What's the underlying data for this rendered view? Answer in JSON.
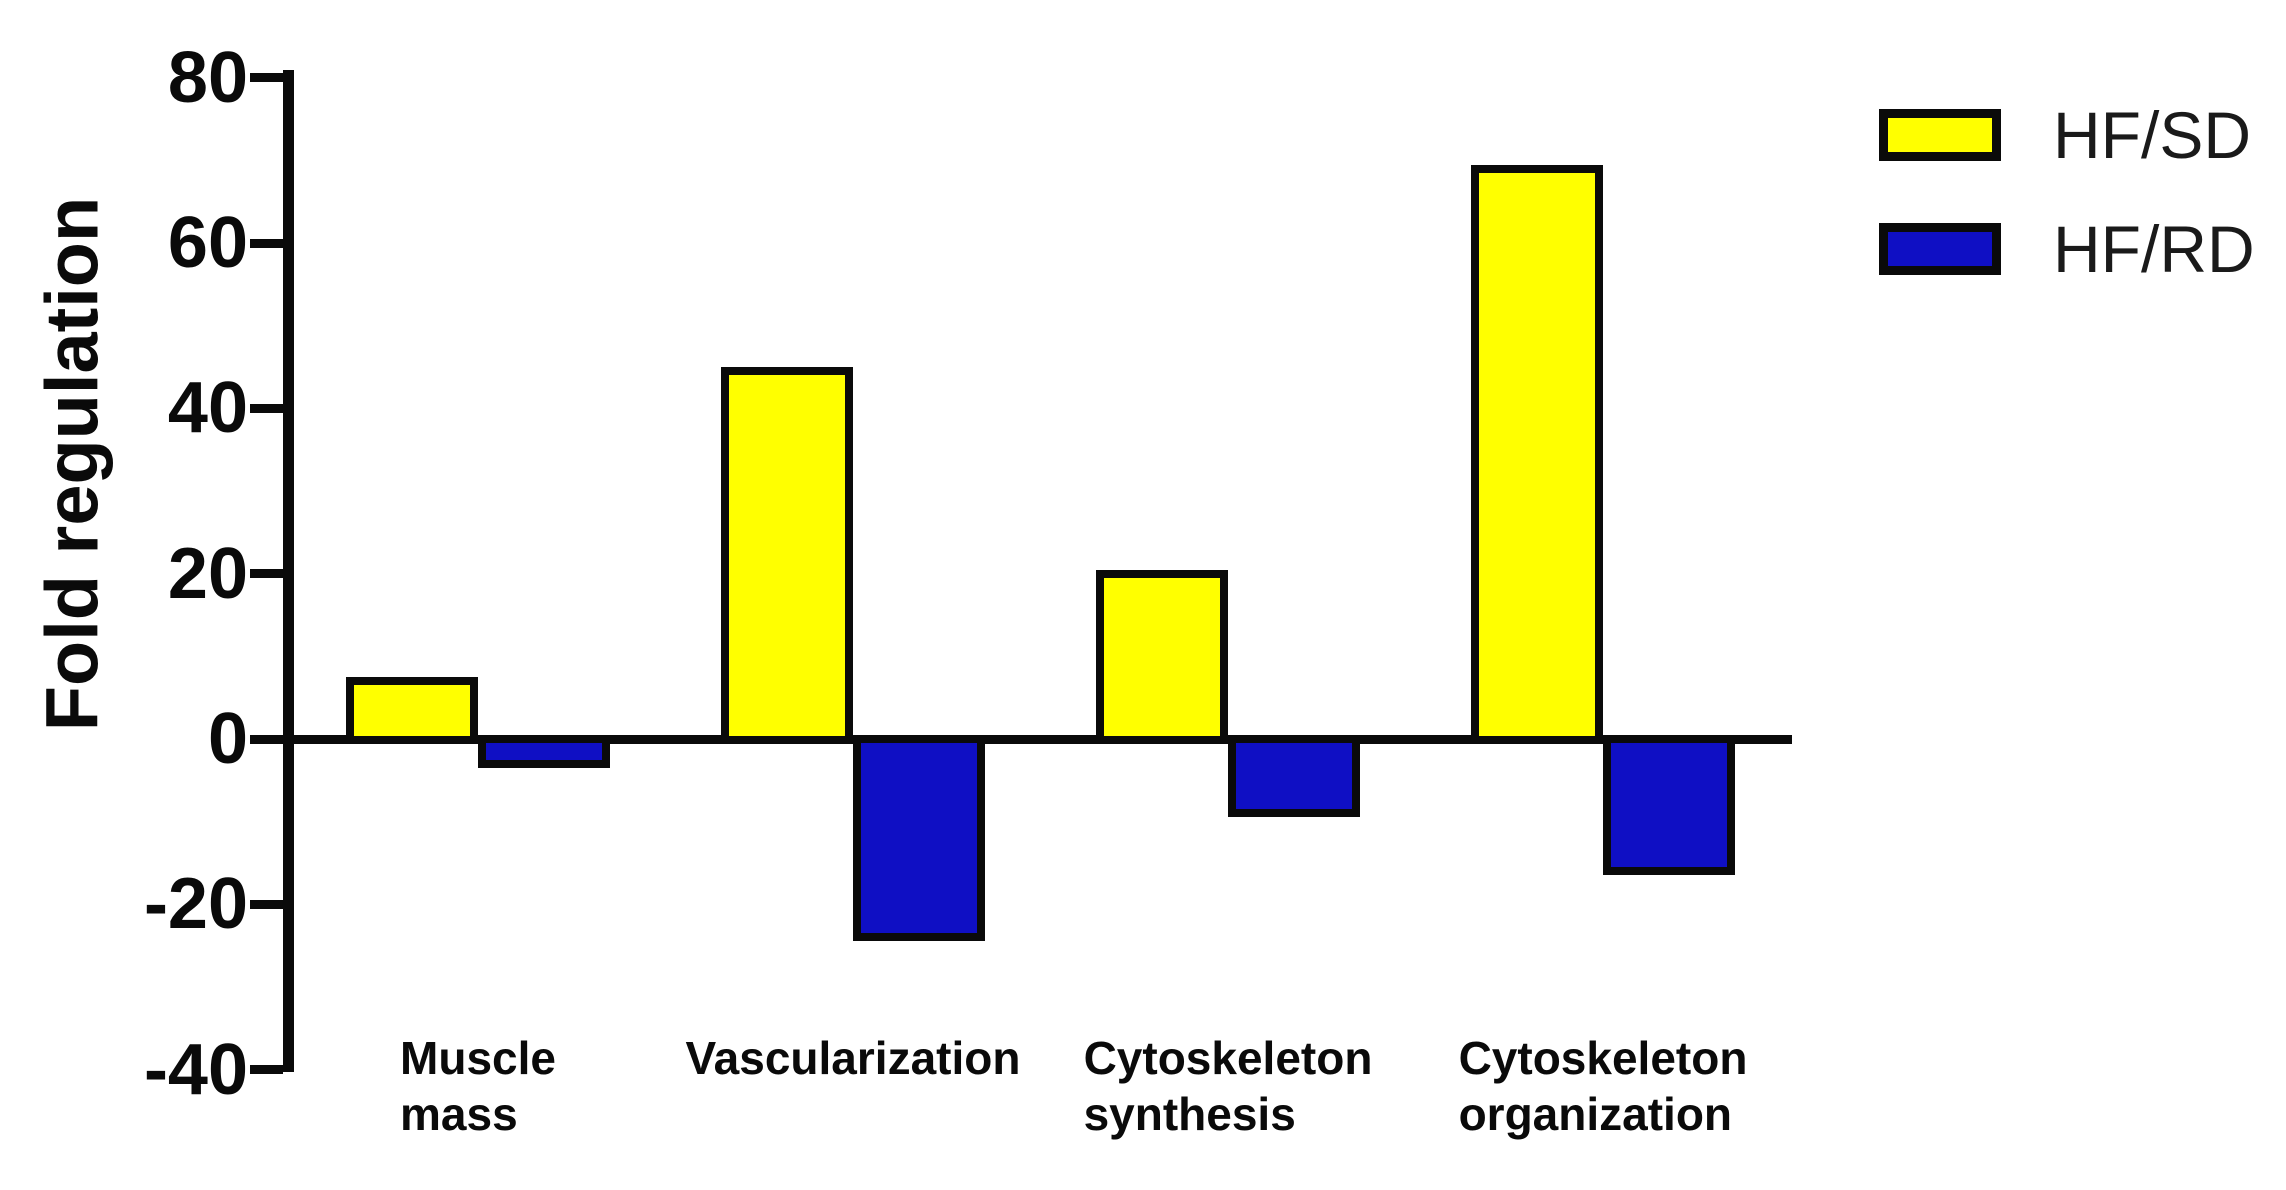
{
  "figure": {
    "background": "#ffffff",
    "ink_color": "#0a0a0a"
  },
  "chart_data": {
    "type": "bar",
    "title": "",
    "xlabel": "",
    "ylabel": "Fold regulation",
    "categories": [
      "Muscle mass",
      "Vascularization",
      "Cytoskeleton synthesis",
      "Cytoskeleton organization"
    ],
    "category_lines": [
      [
        "Muscle",
        "mass"
      ],
      [
        "Vascularization"
      ],
      [
        "Cytoskeleton",
        "synthesis"
      ],
      [
        "Cytoskeleton",
        "organization"
      ]
    ],
    "series": [
      {
        "name": "HF/SD",
        "color": "#FFFF00",
        "values": [
          7,
          44.5,
          20,
          69
        ]
      },
      {
        "name": "HF/RD",
        "color": "#0F0FC4",
        "values": [
          -3,
          -24,
          -9,
          -16
        ]
      }
    ],
    "ylim": [
      -40,
      80
    ],
    "yticks": [
      80,
      60,
      40,
      20,
      0,
      -20,
      -40
    ],
    "grid": false,
    "legend_position": "top-right",
    "bar_outline_color": "#0a0a0a"
  }
}
